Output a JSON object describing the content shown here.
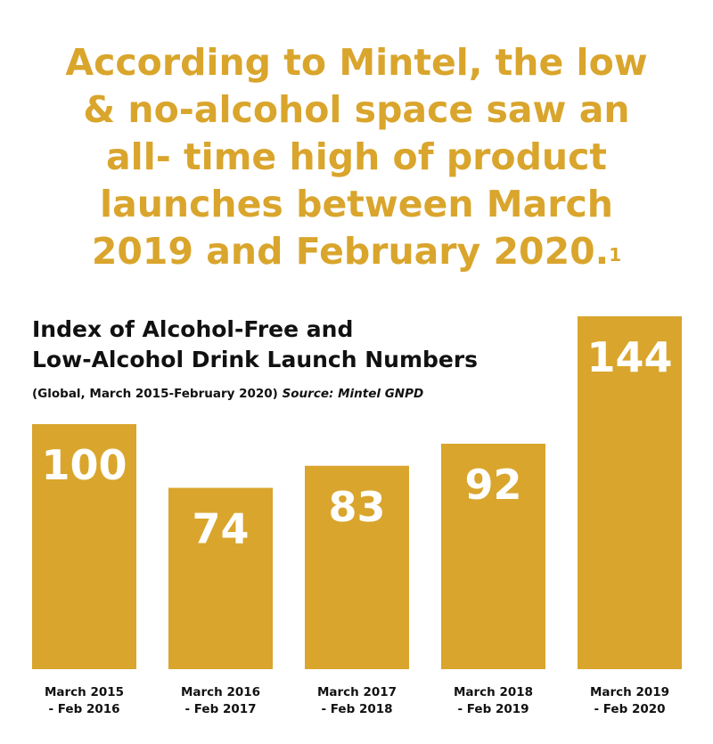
{
  "headline": {
    "line1": "According to Mintel, the low",
    "line2": "& no-alcohol space saw an",
    "line3": "all- time high of product",
    "line4": "launches between March",
    "line5": "2019 and February 2020.",
    "footnote": "1"
  },
  "chart_data": {
    "type": "bar",
    "title_line1": "Index of Alcohol-Free and",
    "title_line2": "Low-Alcohol Drink Launch Numbers",
    "subtitle": "(Global, March 2015-February 2020)",
    "source": "Source: Mintel GNPD",
    "categories": [
      [
        "March 2015",
        "- Feb 2016"
      ],
      [
        "March 2016",
        "- Feb 2017"
      ],
      [
        "March 2017",
        "- Feb 2018"
      ],
      [
        "March 2018",
        "- Feb 2019"
      ],
      [
        "March 2019",
        "- Feb 2020"
      ]
    ],
    "values": [
      100,
      74,
      83,
      92,
      144
    ],
    "ylim": [
      0,
      144
    ],
    "bar_color": "#d9a52c",
    "label_color": "#ffffff",
    "grid": false,
    "legend": "none"
  }
}
